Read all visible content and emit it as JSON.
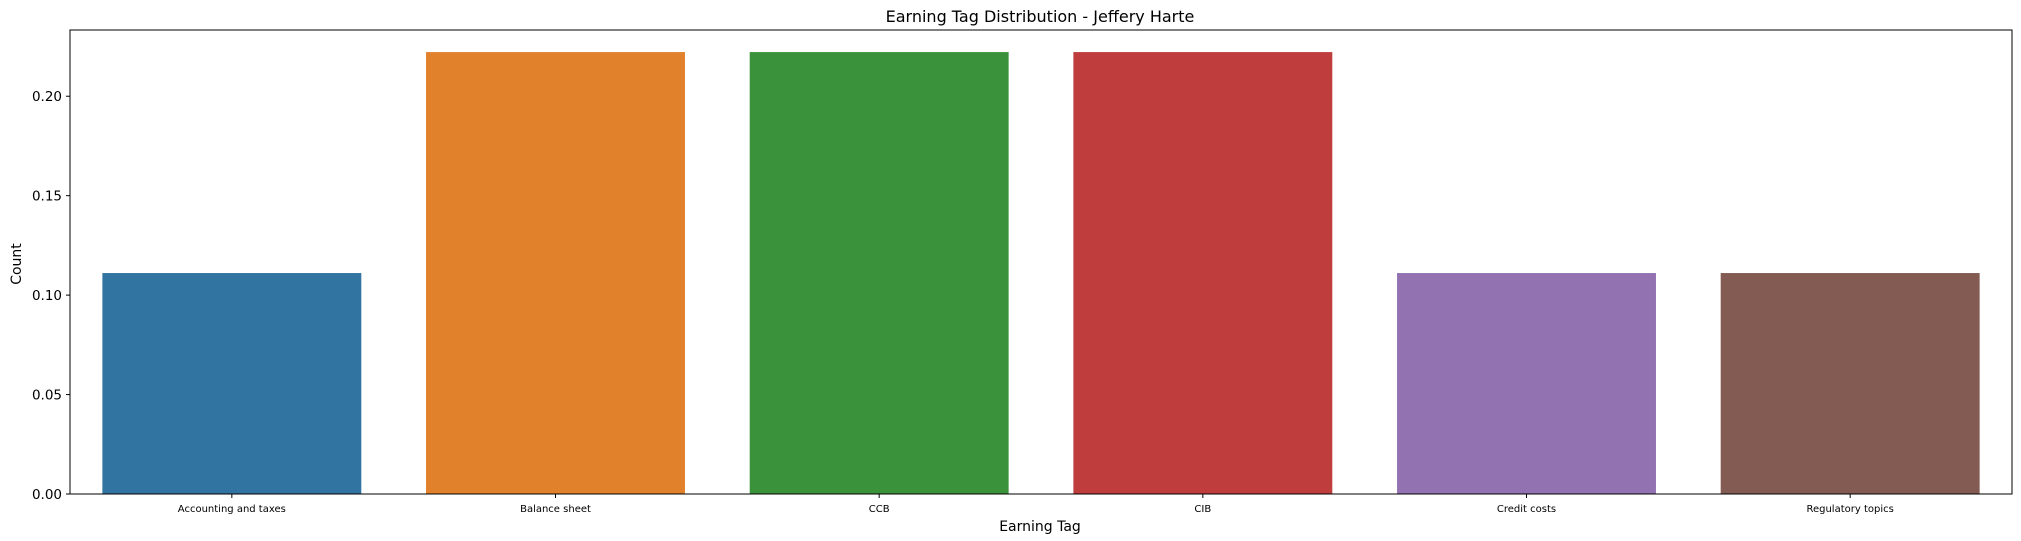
{
  "chart_data": {
    "type": "bar",
    "title": "Earning Tag Distribution - Jeffery Harte",
    "xlabel": "Earning Tag",
    "ylabel": "Count",
    "categories": [
      "Accounting and taxes",
      "Balance sheet",
      "CCB",
      "CIB",
      "Credit costs",
      "Regulatory topics"
    ],
    "values": [
      0.1111,
      0.2222,
      0.2222,
      0.2222,
      0.1111,
      0.1111
    ],
    "colors": [
      "#3274a1",
      "#e1812c",
      "#3a923a",
      "#c03d3e",
      "#9372b2",
      "#845b53"
    ],
    "ylim": [
      0,
      0.2333
    ],
    "yticks": [
      0.0,
      0.05,
      0.1,
      0.15,
      0.2
    ],
    "ytick_labels": [
      "0.00",
      "0.05",
      "0.10",
      "0.15",
      "0.20"
    ],
    "grid": false,
    "legend": "none"
  }
}
